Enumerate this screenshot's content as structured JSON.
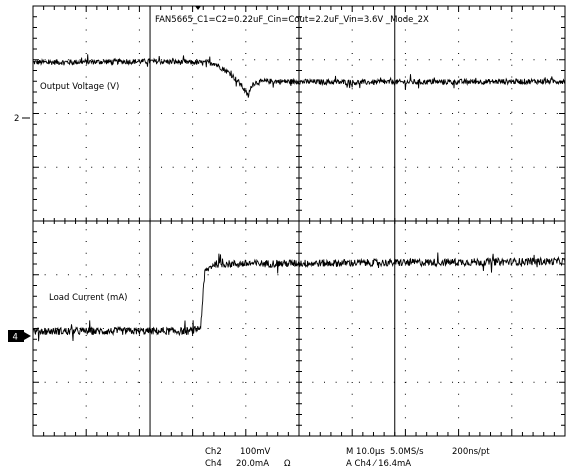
{
  "chart_data": {
    "type": "line",
    "title": "FAN5665_C1=C2=0.22uF_Cin=Cout=2.2uF_Vin=3.6V _Mode_2X",
    "xlabel": "",
    "ylabel": "",
    "grid": true,
    "x_divisions": 10,
    "y_divisions": 8,
    "x_range_us": [
      0,
      100
    ],
    "cursors_us": [
      22,
      68
    ],
    "channels": [
      {
        "name": "Output Voltage (V)",
        "marker": "2",
        "marker_div": 3.0,
        "color": "#000000",
        "noise_div": 0.05,
        "waveform_div": [
          [
            0,
            2.95
          ],
          [
            22,
            2.97
          ],
          [
            34,
            2.94
          ],
          [
            37,
            2.75
          ],
          [
            39,
            2.55
          ],
          [
            40.5,
            2.32
          ],
          [
            41.2,
            2.55
          ],
          [
            42,
            2.58
          ],
          [
            44,
            2.6
          ],
          [
            60,
            2.58
          ],
          [
            100,
            2.6
          ]
        ]
      },
      {
        "name": "Load Current (mA)",
        "marker": "4",
        "marker_div": -2.05,
        "color": "#000000",
        "noise_div": 0.07,
        "waveform_div": [
          [
            0,
            -2.05
          ],
          [
            30,
            -2.05
          ],
          [
            31.5,
            -1.98
          ],
          [
            32.3,
            -0.95
          ],
          [
            34,
            -0.8
          ],
          [
            100,
            -0.75
          ]
        ]
      }
    ],
    "readouts": {
      "ch2_label": "Ch2",
      "ch2_scale": "100mV",
      "ch4_label": "Ch4",
      "ch4_scale": "20.0mA",
      "ch4_coupling": "Ω",
      "timebase": "M 10.0µs",
      "sample_rate": "5.0MS/s",
      "resolution": "200ns/pt",
      "trigger": "A  Ch4  ⁄  16.4mA"
    }
  }
}
